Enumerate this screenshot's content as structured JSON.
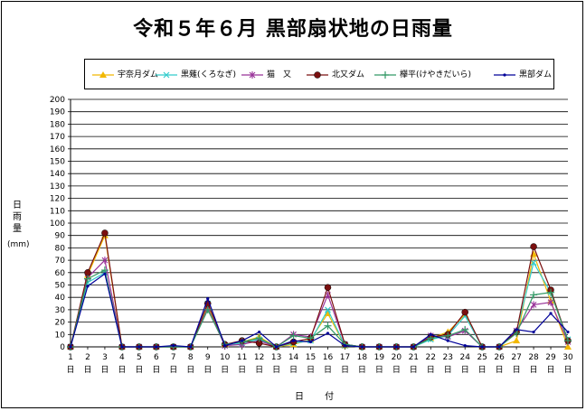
{
  "title": "令和５年６月 黒部扇状地の日雨量",
  "chart_data": {
    "type": "line",
    "title": "令和５年６月 黒部扇状地の日雨量",
    "ylabel": "日雨量",
    "yunit": "(mm)",
    "xlabel": "日 付",
    "x": [
      1,
      2,
      3,
      4,
      5,
      6,
      7,
      8,
      9,
      10,
      11,
      12,
      13,
      14,
      15,
      16,
      17,
      18,
      19,
      20,
      21,
      22,
      23,
      24,
      25,
      26,
      27,
      28,
      29,
      30
    ],
    "xtick_suffix": "日",
    "ylim": [
      0,
      200
    ],
    "ytick_step": 10,
    "grid": true,
    "legend_position": "top",
    "series": [
      {
        "name": "宇奈月ダム",
        "color": "#F2B800",
        "marker": "triangle",
        "values": [
          0,
          58,
          90,
          0,
          0,
          0,
          0,
          0,
          33,
          2,
          4,
          8,
          0,
          2,
          6,
          27,
          1,
          0,
          0,
          0,
          0,
          7,
          12,
          26,
          0,
          0,
          5,
          75,
          37,
          0
        ]
      },
      {
        "name": "黒薙(くろなぎ)",
        "color": "#33CCCC",
        "marker": "x",
        "values": [
          0,
          52,
          60,
          0,
          0,
          0,
          0,
          0,
          35,
          1,
          3,
          6,
          0,
          3,
          5,
          30,
          1,
          0,
          0,
          0,
          0,
          6,
          9,
          25,
          0,
          0,
          12,
          68,
          44,
          6
        ]
      },
      {
        "name": "猫　又",
        "color": "#993399",
        "marker": "star",
        "values": [
          0,
          56,
          70,
          0,
          0,
          0,
          0,
          0,
          31,
          1,
          2,
          5,
          0,
          10,
          8,
          42,
          2,
          0,
          0,
          0,
          0,
          9,
          8,
          13,
          0,
          0,
          13,
          34,
          36,
          4
        ]
      },
      {
        "name": "北又ダム",
        "color": "#7A1010",
        "marker": "circle",
        "values": [
          0,
          60,
          92,
          0,
          0,
          0,
          0,
          0,
          35,
          2,
          5,
          3,
          0,
          4,
          7,
          48,
          2,
          0,
          0,
          0,
          0,
          8,
          10,
          28,
          0,
          0,
          12,
          81,
          46,
          5
        ]
      },
      {
        "name": "欅平(けやきだいら)",
        "color": "#339966",
        "marker": "plus",
        "values": [
          0,
          55,
          62,
          0,
          0,
          0,
          0,
          0,
          30,
          2,
          4,
          7,
          0,
          9,
          7,
          17,
          2,
          0,
          0,
          0,
          0,
          7,
          9,
          14,
          0,
          0,
          11,
          42,
          44,
          5
        ]
      },
      {
        "name": "黒部ダム",
        "color": "#000099",
        "marker": "dot",
        "values": [
          0,
          49,
          59,
          0,
          0,
          0,
          1,
          0,
          39,
          1,
          5,
          12,
          0,
          5,
          4,
          11,
          1,
          0,
          0,
          0,
          0,
          10,
          5,
          1,
          0,
          0,
          14,
          12,
          27,
          12
        ]
      }
    ]
  }
}
